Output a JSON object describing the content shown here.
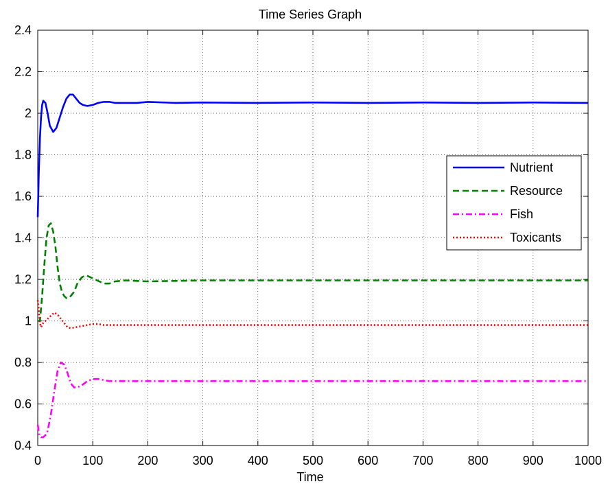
{
  "chart_data": {
    "type": "line",
    "title": "Time Series Graph",
    "xlabel": "Time",
    "ylabel": "",
    "xlim": [
      0,
      1000
    ],
    "ylim": [
      0.4,
      2.4
    ],
    "xticks": [
      0,
      100,
      200,
      300,
      400,
      500,
      600,
      700,
      800,
      900,
      1000
    ],
    "yticks": [
      0.4,
      0.6,
      0.8,
      1,
      1.2,
      1.4,
      1.6,
      1.8,
      2,
      2.2,
      2.4
    ],
    "xtick_labels": [
      "0",
      "100",
      "200",
      "300",
      "400",
      "500",
      "600",
      "700",
      "800",
      "900",
      "1000"
    ],
    "ytick_labels": [
      "0.4",
      "0.6",
      "0.8",
      "1",
      "1.2",
      "1.4",
      "1.6",
      "1.8",
      "2",
      "2.2",
      "2.4"
    ],
    "grid": true,
    "legend_position": "right",
    "series": [
      {
        "name": "Nutrient",
        "color": "#0000ff",
        "dash": "solid",
        "x": [
          0,
          2,
          4,
          6,
          8,
          10,
          14,
          18,
          22,
          28,
          34,
          40,
          46,
          52,
          58,
          64,
          70,
          76,
          82,
          90,
          100,
          110,
          120,
          130,
          140,
          160,
          180,
          200,
          250,
          300,
          400,
          500,
          600,
          700,
          800,
          900,
          1000
        ],
        "y": [
          1.5,
          1.72,
          1.88,
          1.98,
          2.04,
          2.06,
          2.05,
          2.0,
          1.94,
          1.91,
          1.93,
          1.98,
          2.03,
          2.07,
          2.09,
          2.09,
          2.07,
          2.05,
          2.04,
          2.035,
          2.04,
          2.05,
          2.055,
          2.055,
          2.05,
          2.05,
          2.05,
          2.055,
          2.05,
          2.052,
          2.05,
          2.052,
          2.05,
          2.052,
          2.05,
          2.052,
          2.05
        ]
      },
      {
        "name": "Resource",
        "color": "#008000",
        "dash": "dashed",
        "x": [
          0,
          4,
          8,
          12,
          16,
          20,
          24,
          28,
          32,
          36,
          40,
          44,
          48,
          52,
          56,
          60,
          66,
          72,
          80,
          88,
          96,
          104,
          112,
          120,
          130,
          140,
          160,
          200,
          300,
          400,
          500,
          600,
          700,
          800,
          900,
          1000
        ],
        "y": [
          1.0,
          1.0,
          1.12,
          1.27,
          1.4,
          1.46,
          1.47,
          1.43,
          1.36,
          1.26,
          1.18,
          1.14,
          1.12,
          1.11,
          1.11,
          1.12,
          1.14,
          1.18,
          1.21,
          1.22,
          1.21,
          1.2,
          1.19,
          1.18,
          1.18,
          1.19,
          1.195,
          1.19,
          1.195,
          1.195,
          1.195,
          1.195,
          1.195,
          1.195,
          1.195,
          1.195
        ]
      },
      {
        "name": "Fish",
        "color": "#ff00ff",
        "dash": "dashdot",
        "x": [
          0,
          3,
          6,
          10,
          14,
          18,
          24,
          30,
          36,
          42,
          48,
          54,
          60,
          66,
          72,
          80,
          90,
          100,
          110,
          120,
          130,
          140,
          150,
          170,
          200,
          300,
          400,
          500,
          600,
          700,
          800,
          900,
          1000
        ],
        "y": [
          0.5,
          0.45,
          0.44,
          0.44,
          0.45,
          0.47,
          0.55,
          0.66,
          0.76,
          0.8,
          0.79,
          0.75,
          0.7,
          0.68,
          0.68,
          0.69,
          0.71,
          0.72,
          0.72,
          0.715,
          0.71,
          0.71,
          0.71,
          0.71,
          0.71,
          0.71,
          0.71,
          0.71,
          0.71,
          0.71,
          0.71,
          0.71,
          0.71
        ]
      },
      {
        "name": "Toxicants",
        "color": "#ff0000",
        "dash": "dotted",
        "x": [
          0,
          2,
          4,
          6,
          8,
          10,
          14,
          18,
          22,
          26,
          30,
          36,
          42,
          48,
          54,
          60,
          70,
          80,
          90,
          100,
          110,
          120,
          140,
          160,
          200,
          300,
          400,
          500,
          600,
          700,
          800,
          900,
          1000
        ],
        "y": [
          1.1,
          1.05,
          0.99,
          0.97,
          0.98,
          0.99,
          1.0,
          1.01,
          1.02,
          1.03,
          1.04,
          1.03,
          1.01,
          0.99,
          0.97,
          0.965,
          0.97,
          0.975,
          0.98,
          0.985,
          0.985,
          0.98,
          0.98,
          0.98,
          0.98,
          0.98,
          0.98,
          0.98,
          0.98,
          0.98,
          0.98,
          0.98,
          0.98
        ]
      }
    ]
  }
}
